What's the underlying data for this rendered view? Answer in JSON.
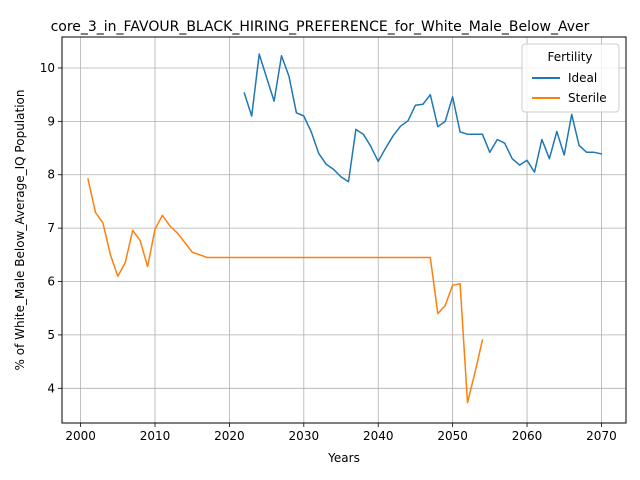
{
  "chart_data": {
    "type": "line",
    "title": "core_3_in_FAVOUR_BLACK_HIRING_PREFERENCE_for_White_Male_Below_Aver",
    "xlabel": "Years",
    "ylabel": "% of White_Male Below_Average_IQ Population",
    "xlim": [
      1997.5,
      2073.3
    ],
    "ylim": [
      3.35,
      10.58
    ],
    "xticks": [
      2000,
      2010,
      2020,
      2030,
      2040,
      2050,
      2060,
      2070
    ],
    "yticks": [
      4,
      5,
      6,
      7,
      8,
      9,
      10
    ],
    "grid": true,
    "legend": {
      "title": "Fertility",
      "position": "top-right"
    },
    "series": [
      {
        "name": "Ideal",
        "color": "#1f77b4",
        "x": [
          2022,
          2023,
          2024,
          2025,
          2026,
          2027,
          2028,
          2029,
          2030,
          2031,
          2032,
          2033,
          2034,
          2035,
          2036,
          2037,
          2038,
          2039,
          2040,
          2041,
          2042,
          2043,
          2044,
          2045,
          2046,
          2047,
          2048,
          2049,
          2050,
          2051,
          2052,
          2053,
          2054,
          2055,
          2056,
          2057,
          2058,
          2059,
          2060,
          2061,
          2062,
          2063,
          2064,
          2065,
          2066,
          2067,
          2068,
          2069,
          2070
        ],
        "y": [
          9.53,
          9.1,
          10.26,
          9.82,
          9.38,
          10.23,
          9.85,
          9.16,
          9.1,
          8.8,
          8.4,
          8.2,
          8.1,
          7.96,
          7.87,
          8.85,
          8.76,
          8.53,
          8.25,
          8.5,
          8.73,
          8.91,
          9.01,
          9.3,
          9.32,
          9.5,
          8.9,
          9.0,
          9.46,
          8.8,
          8.76,
          8.76,
          8.76,
          8.42,
          8.66,
          8.59,
          8.3,
          8.18,
          8.27,
          8.05,
          8.66,
          8.3,
          8.81,
          8.37,
          9.13,
          8.55,
          8.42,
          8.42,
          8.39
        ]
      },
      {
        "name": "Sterile",
        "color": "#ff7f0e",
        "x": [
          2001,
          2002,
          2003,
          2004,
          2005,
          2006,
          2007,
          2008,
          2009,
          2010,
          2011,
          2012,
          2013,
          2014,
          2015,
          2016,
          2017,
          2018,
          2019,
          2020,
          2021,
          2022,
          2023,
          2024,
          2025,
          2026,
          2027,
          2028,
          2029,
          2030,
          2031,
          2032,
          2033,
          2034,
          2035,
          2036,
          2037,
          2038,
          2039,
          2040,
          2041,
          2042,
          2043,
          2044,
          2045,
          2046,
          2047,
          2048,
          2049,
          2050,
          2051,
          2052,
          2053,
          2054
        ],
        "y": [
          7.92,
          7.29,
          7.1,
          6.5,
          6.1,
          6.35,
          6.96,
          6.77,
          6.28,
          6.98,
          7.24,
          7.04,
          6.91,
          6.73,
          6.55,
          6.5,
          6.45,
          6.45,
          6.45,
          6.45,
          6.45,
          6.45,
          6.45,
          6.45,
          6.45,
          6.45,
          6.45,
          6.45,
          6.45,
          6.45,
          6.45,
          6.45,
          6.45,
          6.45,
          6.45,
          6.45,
          6.45,
          6.45,
          6.45,
          6.45,
          6.45,
          6.45,
          6.45,
          6.45,
          6.45,
          6.45,
          6.45,
          5.4,
          5.55,
          5.93,
          5.96,
          3.73,
          4.3,
          4.9
        ]
      }
    ]
  }
}
